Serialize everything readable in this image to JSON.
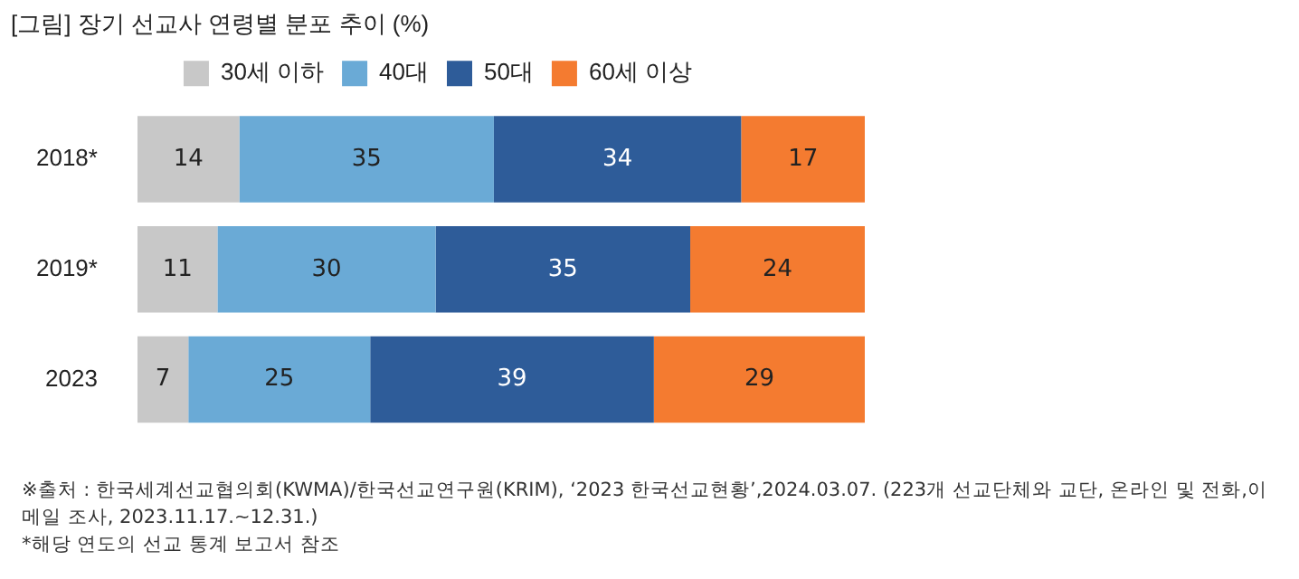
{
  "chart_data": {
    "type": "bar",
    "orientation": "horizontal",
    "stacked": true,
    "title": "[그림] 장기 선교사 연령별 분포 추이 (%)",
    "categories": [
      "2018*",
      "2019*",
      "2023"
    ],
    "series": [
      {
        "name": "30세 이하",
        "color": "#c8c8c8",
        "values": [
          14,
          11,
          7
        ]
      },
      {
        "name": "40대",
        "color": "#6aaad6",
        "values": [
          35,
          30,
          25
        ]
      },
      {
        "name": "50대",
        "color": "#2e5c99",
        "values": [
          34,
          35,
          39
        ]
      },
      {
        "name": "60세 이상",
        "color": "#f47b30",
        "values": [
          17,
          24,
          29
        ]
      }
    ],
    "data_labels": true,
    "legend": "top",
    "tick_labels": "y",
    "annotations": [
      "※출처 : 한국세계선교협의회(KWMA)/한국선교연구원(KRIM), ‘2023 한국선교현황’,2024.03.07. (223개 선교단체와 교단, 온라인 및 전화,이메일 조사, 2023.11.17.~12.31.)",
      "*해당 연도의 선교 통계 보고서 참조"
    ]
  }
}
